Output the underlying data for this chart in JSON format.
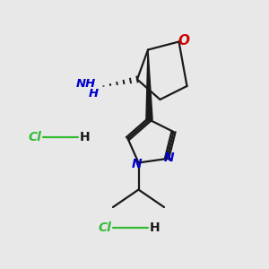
{
  "bg_color": "#e8e8e8",
  "bond_color": "#1a1a1a",
  "o_color": "#cc0000",
  "n_color": "#0000cc",
  "nh2_color": "#4a6fa5",
  "cl_color": "#33bb33",
  "figsize": [
    3.0,
    3.0
  ],
  "dpi": 100,
  "lw": 1.6,
  "xlim": [
    0,
    10
  ],
  "ylim": [
    0,
    10
  ]
}
